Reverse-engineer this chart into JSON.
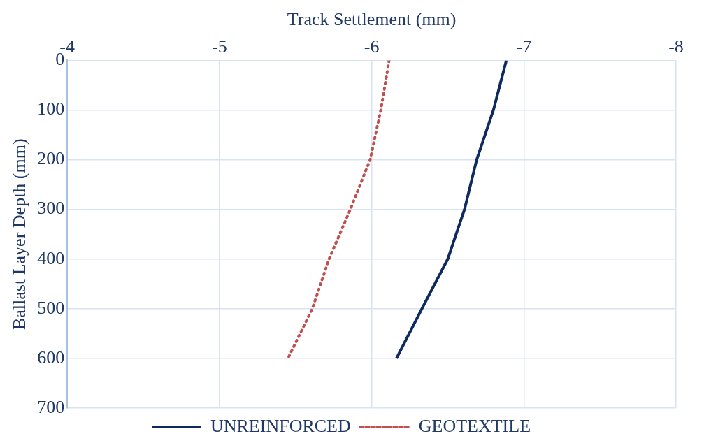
{
  "chart_data": {
    "type": "line",
    "xlabel": "Track Settlement (mm)",
    "ylabel": "Ballast Layer Depth (mm)",
    "xlim": [
      -4,
      -8
    ],
    "xticks": [
      -4,
      -5,
      -6,
      -7,
      -8
    ],
    "ylim": [
      700,
      0
    ],
    "yticks": [
      0,
      100,
      200,
      300,
      400,
      500,
      600,
      700
    ],
    "grid": true,
    "legend": "bottom",
    "marker": "none",
    "series": [
      {
        "name": "UNREINFORCED",
        "color": "#0e2a5e",
        "line_style": "solid",
        "x": [
          -6.885,
          -6.8,
          -6.69,
          -6.61,
          -6.5,
          -6.33,
          -6.163
        ],
        "values": [
          0,
          100,
          200,
          300,
          400,
          500,
          600
        ]
      },
      {
        "name": "GEOTEXTILE",
        "color": "#c0504d",
        "line_style": "dotted",
        "x": [
          -6.115,
          -6.06,
          -5.99,
          -5.86,
          -5.72,
          -5.61,
          -5.45
        ],
        "values": [
          0,
          100,
          200,
          300,
          400,
          500,
          600
        ]
      }
    ]
  }
}
